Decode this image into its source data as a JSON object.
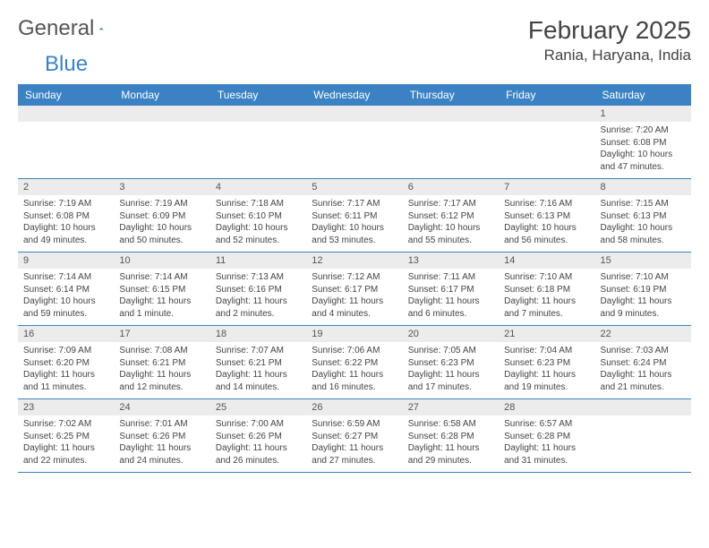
{
  "brand": {
    "part1": "General",
    "part2": "Blue"
  },
  "header": {
    "month_title": "February 2025",
    "location": "Rania, Haryana, India"
  },
  "colors": {
    "header_bg": "#3b82c4",
    "header_text": "#ffffff",
    "daynum_bg": "#ececec",
    "border": "#3b82c4",
    "text": "#444444"
  },
  "weekdays": [
    "Sunday",
    "Monday",
    "Tuesday",
    "Wednesday",
    "Thursday",
    "Friday",
    "Saturday"
  ],
  "weeks": [
    [
      {
        "blank": true
      },
      {
        "blank": true
      },
      {
        "blank": true
      },
      {
        "blank": true
      },
      {
        "blank": true
      },
      {
        "blank": true
      },
      {
        "n": "1",
        "sunrise": "Sunrise: 7:20 AM",
        "sunset": "Sunset: 6:08 PM",
        "daylight": "Daylight: 10 hours and 47 minutes."
      }
    ],
    [
      {
        "n": "2",
        "sunrise": "Sunrise: 7:19 AM",
        "sunset": "Sunset: 6:08 PM",
        "daylight": "Daylight: 10 hours and 49 minutes."
      },
      {
        "n": "3",
        "sunrise": "Sunrise: 7:19 AM",
        "sunset": "Sunset: 6:09 PM",
        "daylight": "Daylight: 10 hours and 50 minutes."
      },
      {
        "n": "4",
        "sunrise": "Sunrise: 7:18 AM",
        "sunset": "Sunset: 6:10 PM",
        "daylight": "Daylight: 10 hours and 52 minutes."
      },
      {
        "n": "5",
        "sunrise": "Sunrise: 7:17 AM",
        "sunset": "Sunset: 6:11 PM",
        "daylight": "Daylight: 10 hours and 53 minutes."
      },
      {
        "n": "6",
        "sunrise": "Sunrise: 7:17 AM",
        "sunset": "Sunset: 6:12 PM",
        "daylight": "Daylight: 10 hours and 55 minutes."
      },
      {
        "n": "7",
        "sunrise": "Sunrise: 7:16 AM",
        "sunset": "Sunset: 6:13 PM",
        "daylight": "Daylight: 10 hours and 56 minutes."
      },
      {
        "n": "8",
        "sunrise": "Sunrise: 7:15 AM",
        "sunset": "Sunset: 6:13 PM",
        "daylight": "Daylight: 10 hours and 58 minutes."
      }
    ],
    [
      {
        "n": "9",
        "sunrise": "Sunrise: 7:14 AM",
        "sunset": "Sunset: 6:14 PM",
        "daylight": "Daylight: 10 hours and 59 minutes."
      },
      {
        "n": "10",
        "sunrise": "Sunrise: 7:14 AM",
        "sunset": "Sunset: 6:15 PM",
        "daylight": "Daylight: 11 hours and 1 minute."
      },
      {
        "n": "11",
        "sunrise": "Sunrise: 7:13 AM",
        "sunset": "Sunset: 6:16 PM",
        "daylight": "Daylight: 11 hours and 2 minutes."
      },
      {
        "n": "12",
        "sunrise": "Sunrise: 7:12 AM",
        "sunset": "Sunset: 6:17 PM",
        "daylight": "Daylight: 11 hours and 4 minutes."
      },
      {
        "n": "13",
        "sunrise": "Sunrise: 7:11 AM",
        "sunset": "Sunset: 6:17 PM",
        "daylight": "Daylight: 11 hours and 6 minutes."
      },
      {
        "n": "14",
        "sunrise": "Sunrise: 7:10 AM",
        "sunset": "Sunset: 6:18 PM",
        "daylight": "Daylight: 11 hours and 7 minutes."
      },
      {
        "n": "15",
        "sunrise": "Sunrise: 7:10 AM",
        "sunset": "Sunset: 6:19 PM",
        "daylight": "Daylight: 11 hours and 9 minutes."
      }
    ],
    [
      {
        "n": "16",
        "sunrise": "Sunrise: 7:09 AM",
        "sunset": "Sunset: 6:20 PM",
        "daylight": "Daylight: 11 hours and 11 minutes."
      },
      {
        "n": "17",
        "sunrise": "Sunrise: 7:08 AM",
        "sunset": "Sunset: 6:21 PM",
        "daylight": "Daylight: 11 hours and 12 minutes."
      },
      {
        "n": "18",
        "sunrise": "Sunrise: 7:07 AM",
        "sunset": "Sunset: 6:21 PM",
        "daylight": "Daylight: 11 hours and 14 minutes."
      },
      {
        "n": "19",
        "sunrise": "Sunrise: 7:06 AM",
        "sunset": "Sunset: 6:22 PM",
        "daylight": "Daylight: 11 hours and 16 minutes."
      },
      {
        "n": "20",
        "sunrise": "Sunrise: 7:05 AM",
        "sunset": "Sunset: 6:23 PM",
        "daylight": "Daylight: 11 hours and 17 minutes."
      },
      {
        "n": "21",
        "sunrise": "Sunrise: 7:04 AM",
        "sunset": "Sunset: 6:23 PM",
        "daylight": "Daylight: 11 hours and 19 minutes."
      },
      {
        "n": "22",
        "sunrise": "Sunrise: 7:03 AM",
        "sunset": "Sunset: 6:24 PM",
        "daylight": "Daylight: 11 hours and 21 minutes."
      }
    ],
    [
      {
        "n": "23",
        "sunrise": "Sunrise: 7:02 AM",
        "sunset": "Sunset: 6:25 PM",
        "daylight": "Daylight: 11 hours and 22 minutes."
      },
      {
        "n": "24",
        "sunrise": "Sunrise: 7:01 AM",
        "sunset": "Sunset: 6:26 PM",
        "daylight": "Daylight: 11 hours and 24 minutes."
      },
      {
        "n": "25",
        "sunrise": "Sunrise: 7:00 AM",
        "sunset": "Sunset: 6:26 PM",
        "daylight": "Daylight: 11 hours and 26 minutes."
      },
      {
        "n": "26",
        "sunrise": "Sunrise: 6:59 AM",
        "sunset": "Sunset: 6:27 PM",
        "daylight": "Daylight: 11 hours and 27 minutes."
      },
      {
        "n": "27",
        "sunrise": "Sunrise: 6:58 AM",
        "sunset": "Sunset: 6:28 PM",
        "daylight": "Daylight: 11 hours and 29 minutes."
      },
      {
        "n": "28",
        "sunrise": "Sunrise: 6:57 AM",
        "sunset": "Sunset: 6:28 PM",
        "daylight": "Daylight: 11 hours and 31 minutes."
      },
      {
        "blank": true
      }
    ]
  ]
}
